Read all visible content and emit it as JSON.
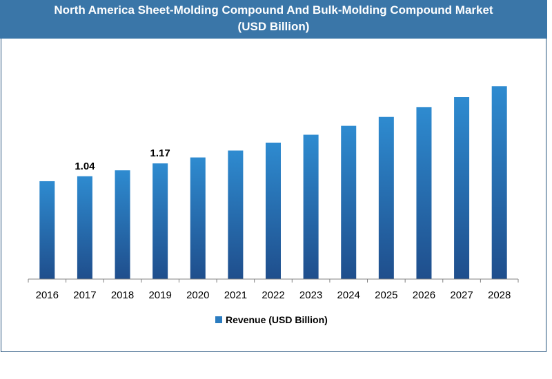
{
  "chart_data": {
    "type": "bar",
    "title_line1": "North America Sheet-Molding Compound And Bulk-Molding Compound Market",
    "title_line2": "(USD Billion)",
    "categories": [
      "2016",
      "2017",
      "2018",
      "2019",
      "2020",
      "2021",
      "2022",
      "2023",
      "2024",
      "2025",
      "2026",
      "2027",
      "2028"
    ],
    "series": [
      {
        "name": "Revenue (USD Billion)",
        "values": [
          0.99,
          1.04,
          1.1,
          1.17,
          1.23,
          1.3,
          1.38,
          1.46,
          1.55,
          1.64,
          1.74,
          1.84,
          1.95
        ]
      }
    ],
    "data_labels": [
      {
        "category": "2017",
        "text": "1.04"
      },
      {
        "category": "2019",
        "text": "1.17"
      }
    ],
    "ylim": [
      0,
      2.3
    ],
    "xlabel": "",
    "ylabel": "",
    "legend_position": "bottom-center",
    "grid": false,
    "colors": {
      "title_bg": "#3a76a8",
      "bar_top": "#2e8bd0",
      "bar_bottom": "#1f4e8c",
      "legend_swatch": "#2b7cc0",
      "frame_border": "#1f4e79"
    }
  }
}
